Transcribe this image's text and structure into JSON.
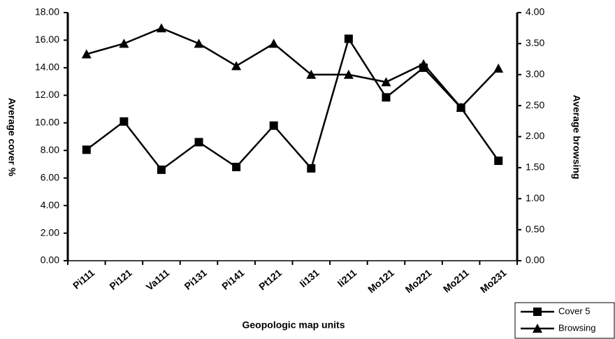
{
  "chart_data": {
    "type": "line",
    "x_label": "Geopologic map units",
    "y_label": "Average cover %",
    "y2_label": "Average browsing",
    "categories": [
      "Pi111",
      "Pi121",
      "Va111",
      "Pi131",
      "Pi141",
      "Pt121",
      "Ii131",
      "Ii211",
      "Mo121",
      "Mo221",
      "Mo211",
      "Mo231"
    ],
    "series": [
      {
        "name": "Cover 5",
        "color": "#000000",
        "marker": "square",
        "axis": "y",
        "values": [
          8.05,
          10.1,
          6.6,
          8.6,
          6.8,
          9.8,
          6.7,
          16.1,
          11.85,
          14.0,
          11.1,
          7.25
        ]
      },
      {
        "name": "Browsing",
        "color": "#000000",
        "marker": "triangle",
        "axis": "y2",
        "values": [
          3.33,
          3.5,
          3.75,
          3.5,
          3.14,
          3.5,
          3.0,
          3.0,
          2.88,
          3.17,
          2.47,
          3.1
        ]
      }
    ],
    "ylim": [
      0,
      18
    ],
    "yticks": [
      {
        "value": 0,
        "label": "0.00"
      },
      {
        "value": 2,
        "label": "2.00"
      },
      {
        "value": 4,
        "label": "4.00"
      },
      {
        "value": 6,
        "label": "6.00"
      },
      {
        "value": 8,
        "label": "8.00"
      },
      {
        "value": 10,
        "label": "10.00"
      },
      {
        "value": 12,
        "label": "12.00"
      },
      {
        "value": 14,
        "label": "14.00"
      },
      {
        "value": 16,
        "label": "16.00"
      },
      {
        "value": 18,
        "label": "18.00"
      }
    ],
    "y2lim": [
      0,
      4
    ],
    "y2ticks": [
      {
        "value": 0,
        "label": "0.00"
      },
      {
        "value": 0.5,
        "label": "0.50"
      },
      {
        "value": 1,
        "label": "1.00"
      },
      {
        "value": 1.5,
        "label": "1.50"
      },
      {
        "value": 2,
        "label": "2.00"
      },
      {
        "value": 2.5,
        "label": "2.50"
      },
      {
        "value": 3,
        "label": "3.00"
      },
      {
        "value": 3.5,
        "label": "3.50"
      },
      {
        "value": 4,
        "label": "4.00"
      }
    ],
    "legend": "bottom-right",
    "grid": false
  }
}
